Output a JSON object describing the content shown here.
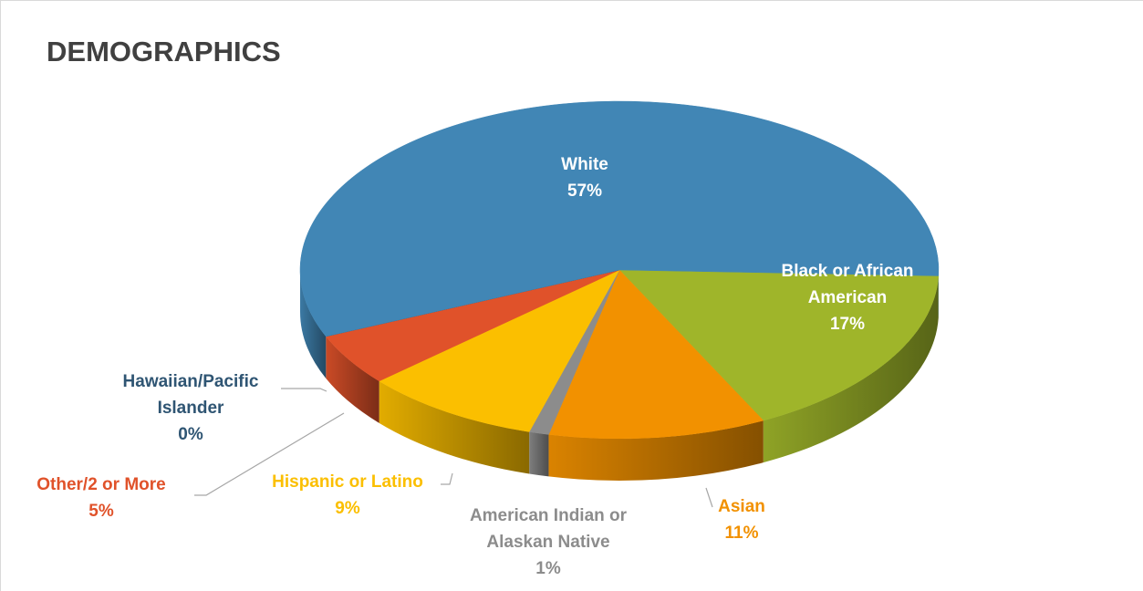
{
  "chart_data": {
    "type": "pie",
    "title": "DEMOGRAPHICS",
    "categories": [
      "Black or African American",
      "Asian",
      "American Indian or Alaskan Native",
      "Hispanic or Latino",
      "Other/2 or More",
      "Hawaiian/Pacific Islander",
      "White"
    ],
    "values": [
      17,
      11,
      1,
      9,
      5,
      0,
      57
    ],
    "value_labels": [
      "17%",
      "11%",
      "1%",
      "9%",
      "5%",
      "0%",
      "57%"
    ],
    "colors": [
      "#9fb52a",
      "#f29100",
      "#8c8c8c",
      "#fbbf00",
      "#e0522a",
      "#2f5573",
      "#4186b5"
    ]
  }
}
